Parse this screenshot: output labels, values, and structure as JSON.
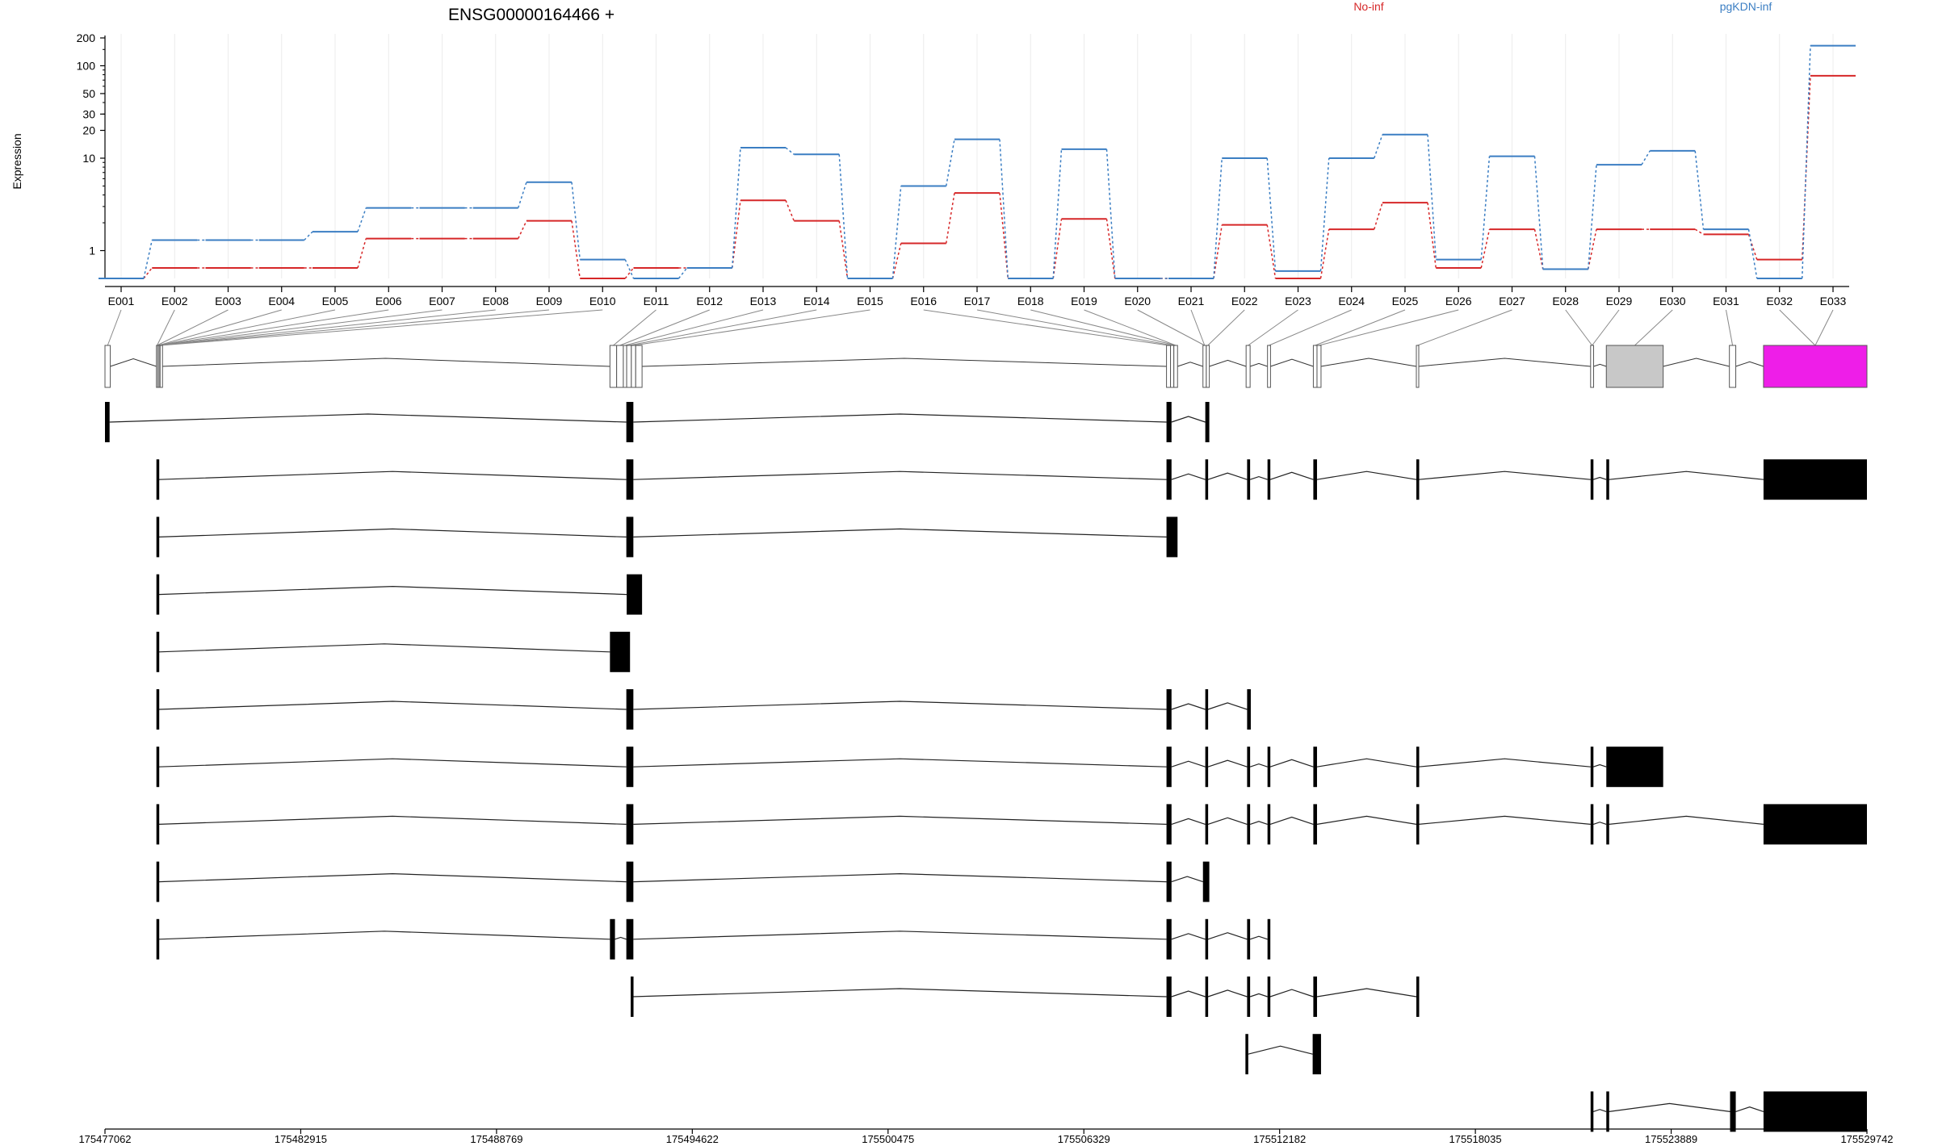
{
  "chart_data": {
    "type": "line",
    "title": "ENSG00000164466 +",
    "ylabel": "Expression",
    "y_scale": "log",
    "ylim": [
      0.5,
      200
    ],
    "y_ticks": [
      "200",
      "100",
      "50",
      "30",
      "20",
      "10",
      "1"
    ],
    "y_tick_values": [
      200,
      100,
      50,
      30,
      20,
      10,
      1
    ],
    "grid": "vertical",
    "legend_placement": "top-right",
    "categories": [
      "E001",
      "E002",
      "E003",
      "E004",
      "E005",
      "E006",
      "E007",
      "E008",
      "E009",
      "E010",
      "E011",
      "E012",
      "E013",
      "E014",
      "E015",
      "E016",
      "E017",
      "E018",
      "E019",
      "E020",
      "E021",
      "E022",
      "E023",
      "E024",
      "E025",
      "E026",
      "E027",
      "E028",
      "E029",
      "E030",
      "E031",
      "E032",
      "E033"
    ],
    "series": [
      {
        "name": "No-inf",
        "color": "#d62728",
        "values": [
          0.5,
          0.65,
          0.65,
          0.65,
          0.65,
          1.35,
          1.35,
          1.35,
          2.1,
          0.5,
          0.65,
          0.65,
          3.5,
          2.1,
          0.5,
          1.2,
          4.2,
          0.5,
          2.2,
          0.5,
          0.5,
          1.9,
          0.5,
          1.7,
          3.3,
          0.65,
          1.7,
          0.63,
          1.7,
          1.7,
          1.5,
          0.8,
          78
        ]
      },
      {
        "name": "pgKDN-inf",
        "color": "#3b7ec3",
        "values": [
          0.5,
          1.3,
          1.3,
          1.3,
          1.6,
          2.9,
          2.9,
          2.9,
          5.5,
          0.8,
          0.5,
          0.65,
          13,
          11,
          0.5,
          5,
          16,
          0.5,
          12.5,
          0.5,
          0.5,
          10,
          0.6,
          10,
          18,
          0.8,
          10.5,
          0.63,
          8.5,
          12,
          1.7,
          0.5,
          165
        ]
      }
    ]
  },
  "gene_model": {
    "x_min": 175477062,
    "x_max": 175529742,
    "x_ticks": [
      "175477062",
      "175482915",
      "175488769",
      "175494622",
      "175500475",
      "175506329",
      "175512182",
      "175518035",
      "175523889",
      "175529742"
    ],
    "x_tick_values": [
      175477062,
      175482915,
      175488769,
      175494622,
      175500475,
      175506329,
      175512182,
      175518035,
      175523889,
      175529742
    ],
    "colors": {
      "exon_outline": "#555555",
      "gray_exon": "#c8c8c8",
      "highlight_exon": "#ee1ee8",
      "transcript": "#000000"
    },
    "exons": [
      {
        "s": 175477062,
        "e": 175477220,
        "fill": "white"
      },
      {
        "s": 175478600,
        "e": 175478640,
        "fill": "white"
      },
      {
        "s": 175478640,
        "e": 175478680,
        "fill": "white"
      },
      {
        "s": 175478680,
        "e": 175478710,
        "fill": "white"
      },
      {
        "s": 175478710,
        "e": 175478740,
        "fill": "white"
      },
      {
        "s": 175492160,
        "e": 175492360,
        "fill": "white"
      },
      {
        "s": 175492360,
        "e": 175492560,
        "fill": "white"
      },
      {
        "s": 175492560,
        "e": 175492660,
        "fill": "white"
      },
      {
        "s": 175492660,
        "e": 175492800,
        "fill": "white"
      },
      {
        "s": 175492800,
        "e": 175492930,
        "fill": "white"
      },
      {
        "s": 175492930,
        "e": 175493120,
        "fill": "white"
      },
      {
        "s": 175508800,
        "e": 175508920,
        "fill": "white"
      },
      {
        "s": 175508920,
        "e": 175509020,
        "fill": "white"
      },
      {
        "s": 175509020,
        "e": 175509130,
        "fill": "white"
      },
      {
        "s": 175509890,
        "e": 175509990,
        "fill": "white"
      },
      {
        "s": 175509990,
        "e": 175510080,
        "fill": "white"
      },
      {
        "s": 175511180,
        "e": 175511300,
        "fill": "white"
      },
      {
        "s": 175511820,
        "e": 175511910,
        "fill": "white"
      },
      {
        "s": 175513190,
        "e": 175513300,
        "fill": "white"
      },
      {
        "s": 175513300,
        "e": 175513420,
        "fill": "white"
      },
      {
        "s": 175516270,
        "e": 175516340,
        "fill": "white"
      },
      {
        "s": 175521480,
        "e": 175521570,
        "fill": "white"
      },
      {
        "s": 175521950,
        "e": 175523650,
        "fill": "gray"
      },
      {
        "s": 175525630,
        "e": 175525820,
        "fill": "white"
      },
      {
        "s": 175526650,
        "e": 175529742,
        "fill": "magenta"
      }
    ],
    "exon_links": [
      [
        0,
        0
      ],
      [
        1,
        1
      ],
      [
        2,
        1
      ],
      [
        3,
        2
      ],
      [
        4,
        2
      ],
      [
        5,
        2
      ],
      [
        6,
        2
      ],
      [
        7,
        3
      ],
      [
        8,
        3
      ],
      [
        9,
        4
      ],
      [
        10,
        5
      ],
      [
        11,
        6
      ],
      [
        12,
        7
      ],
      [
        13,
        8
      ],
      [
        14,
        9
      ],
      [
        15,
        11
      ],
      [
        16,
        12
      ],
      [
        17,
        13
      ],
      [
        18,
        13
      ],
      [
        19,
        14
      ],
      [
        20,
        14
      ],
      [
        21,
        15
      ],
      [
        22,
        16
      ],
      [
        23,
        17
      ],
      [
        24,
        18
      ],
      [
        25,
        19
      ],
      [
        26,
        20
      ],
      [
        27,
        21
      ],
      [
        28,
        21
      ],
      [
        29,
        22
      ],
      [
        30,
        23
      ],
      [
        31,
        24
      ],
      [
        32,
        25
      ]
    ],
    "transcripts": [
      [
        [
          175477062,
          175477200
        ],
        [
          175492650,
          175492860
        ],
        [
          175508800,
          175508950
        ],
        [
          175509960,
          175510080
        ]
      ],
      [
        [
          175478600,
          175478670
        ],
        [
          175492650,
          175492860
        ],
        [
          175508800,
          175508950
        ],
        [
          175509960,
          175510040
        ],
        [
          175511210,
          175511300
        ],
        [
          175511820,
          175511900
        ],
        [
          175513190,
          175513300
        ],
        [
          175516270,
          175516340
        ],
        [
          175521480,
          175521560
        ],
        [
          175521950,
          175522030
        ],
        [
          175526650,
          175529742
        ]
      ],
      [
        [
          175478600,
          175478670
        ],
        [
          175492650,
          175492860
        ],
        [
          175508800,
          175509130
        ]
      ],
      [
        [
          175478600,
          175478670
        ],
        [
          175492660,
          175493120
        ]
      ],
      [
        [
          175478600,
          175478670
        ],
        [
          175492160,
          175492760
        ]
      ],
      [
        [
          175478600,
          175478670
        ],
        [
          175492650,
          175492860
        ],
        [
          175508800,
          175508950
        ],
        [
          175509960,
          175510040
        ],
        [
          175511210,
          175511320
        ]
      ],
      [
        [
          175478600,
          175478670
        ],
        [
          175492650,
          175492860
        ],
        [
          175508800,
          175508950
        ],
        [
          175509960,
          175510040
        ],
        [
          175511210,
          175511300
        ],
        [
          175511820,
          175511900
        ],
        [
          175513190,
          175513300
        ],
        [
          175516270,
          175516340
        ],
        [
          175521480,
          175521560
        ],
        [
          175521950,
          175523650
        ]
      ],
      [
        [
          175478600,
          175478670
        ],
        [
          175492650,
          175492860
        ],
        [
          175508800,
          175508950
        ],
        [
          175509960,
          175510040
        ],
        [
          175511210,
          175511300
        ],
        [
          175511820,
          175511900
        ],
        [
          175513190,
          175513300
        ],
        [
          175516270,
          175516340
        ],
        [
          175521480,
          175521560
        ],
        [
          175521950,
          175522030
        ],
        [
          175526650,
          175529742
        ]
      ],
      [
        [
          175478600,
          175478670
        ],
        [
          175492650,
          175492860
        ],
        [
          175508800,
          175508950
        ],
        [
          175509890,
          175510080
        ]
      ],
      [
        [
          175478600,
          175478670
        ],
        [
          175492160,
          175492310
        ],
        [
          175492650,
          175492860
        ],
        [
          175508800,
          175508950
        ],
        [
          175509960,
          175510040
        ],
        [
          175511210,
          175511300
        ],
        [
          175511820,
          175511900
        ]
      ],
      [
        [
          175492780,
          175492830
        ],
        [
          175508800,
          175508950
        ],
        [
          175509960,
          175510040
        ],
        [
          175511210,
          175511300
        ],
        [
          175511820,
          175511900
        ],
        [
          175513190,
          175513300
        ],
        [
          175516270,
          175516320
        ]
      ],
      [
        [
          175511160,
          175511240
        ],
        [
          175513170,
          175513420
        ]
      ],
      [
        [
          175521480,
          175521560
        ],
        [
          175521950,
          175522030
        ],
        [
          175525650,
          175525820
        ],
        [
          175526650,
          175529742
        ]
      ]
    ]
  }
}
